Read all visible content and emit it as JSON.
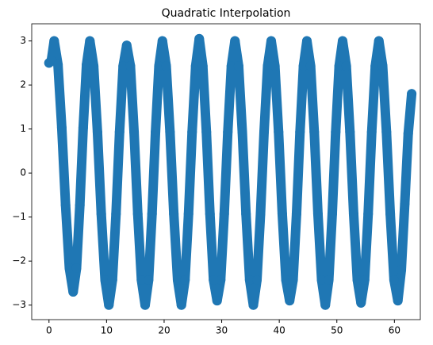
{
  "chart_data": {
    "type": "line",
    "title": "Quadratic Interpolation",
    "color": "#1f77b4",
    "linewidth": 12,
    "markers": true,
    "x": [
      0,
      0.4,
      0.9,
      1.56,
      2.22,
      2.88,
      3.54,
      4.2,
      4.78,
      5.36,
      5.94,
      6.52,
      7.1,
      7.76,
      8.42,
      9.08,
      9.74,
      10.4,
      11.02,
      11.64,
      12.26,
      12.88,
      13.5,
      14.14,
      14.78,
      15.42,
      16.06,
      16.7,
      17.3,
      17.9,
      18.5,
      19.1,
      19.7,
      20.36,
      21.02,
      21.68,
      22.34,
      23,
      23.62,
      24.24,
      24.86,
      25.48,
      26.1,
      26.72,
      27.34,
      27.96,
      28.58,
      29.2,
      29.82,
      30.44,
      31.06,
      31.68,
      32.3,
      32.94,
      33.58,
      34.22,
      34.86,
      35.5,
      36.12,
      36.74,
      37.36,
      37.98,
      38.6,
      39.24,
      39.88,
      40.52,
      41.16,
      41.8,
      42.4,
      43,
      43.6,
      44.2,
      44.8,
      45.44,
      46.08,
      46.72,
      47.36,
      48,
      48.6,
      49.2,
      49.8,
      50.4,
      51,
      51.64,
      52.28,
      52.92,
      53.56,
      54.2,
      54.82,
      55.44,
      56.06,
      56.68,
      57.3,
      57.96,
      58.62,
      59.28,
      59.94,
      60.6,
      61.2,
      61.8,
      62.4,
      63
    ],
    "y": [
      2.5,
      2.55,
      3,
      2.46,
      1.03,
      -0.73,
      -2.16,
      -2.7,
      -2.16,
      -0.73,
      1.03,
      2.46,
      3,
      2.43,
      0.93,
      -0.93,
      -2.43,
      -3,
      -2.43,
      -0.93,
      0.93,
      2.43,
      2.9,
      2.43,
      0.93,
      -0.93,
      -2.43,
      -3,
      -2.43,
      -0.93,
      0.93,
      2.43,
      3,
      2.43,
      0.93,
      -0.93,
      -2.43,
      -3,
      -2.43,
      -0.93,
      0.93,
      2.43,
      3.05,
      2.43,
      0.93,
      -0.93,
      -2.43,
      -2.9,
      -2.43,
      -0.93,
      0.93,
      2.43,
      3,
      2.43,
      0.93,
      -0.93,
      -2.43,
      -3,
      -2.43,
      -0.93,
      0.93,
      2.43,
      3,
      2.43,
      0.93,
      -0.93,
      -2.43,
      -2.9,
      -2.43,
      -0.93,
      0.93,
      2.43,
      3,
      2.43,
      0.93,
      -0.93,
      -2.43,
      -3,
      -2.43,
      -0.93,
      0.93,
      2.43,
      3,
      2.43,
      0.93,
      -0.93,
      -2.43,
      -2.95,
      -2.43,
      -0.93,
      0.93,
      2.43,
      3,
      2.43,
      0.93,
      -0.93,
      -2.43,
      -2.9,
      -2.2,
      -0.7,
      0.9,
      1.8
    ],
    "xlim": [
      -3.0,
      64.5
    ],
    "xticks": [
      0,
      10,
      20,
      30,
      40,
      50,
      60
    ],
    "ylim": [
      -3.33,
      3.39
    ],
    "yticks": [
      {
        "value": -3,
        "label": "−3"
      },
      {
        "value": -2,
        "label": "−2"
      },
      {
        "value": -1,
        "label": "−1"
      },
      0,
      1,
      2,
      3
    ]
  }
}
